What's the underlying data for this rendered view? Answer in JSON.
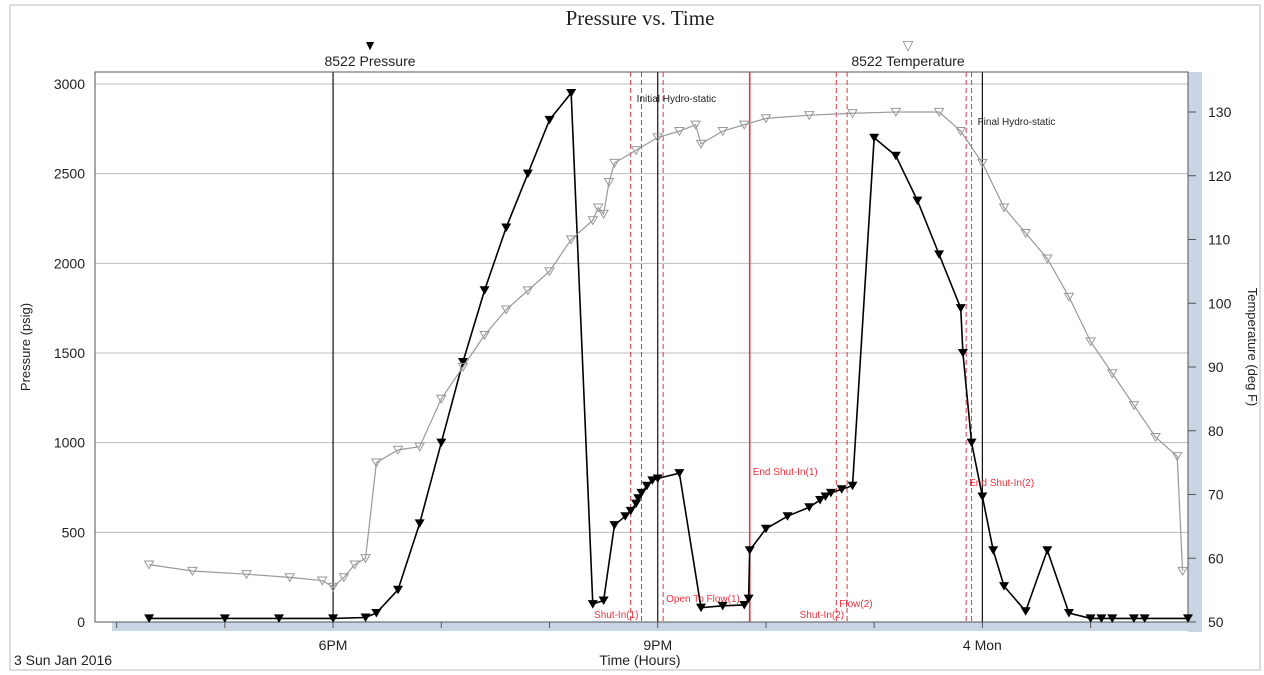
{
  "chart_data": {
    "type": "line",
    "title": "Pressure vs. Time",
    "xlabel": "Time (Hours)",
    "ylabel_left": "Pressure (psig)",
    "ylabel_right": "Temperature (deg F)",
    "date_label": "3 Sun Jan 2016",
    "x_ticks": [
      {
        "label": "6PM",
        "hour": 18
      },
      {
        "label": "9PM",
        "hour": 21
      },
      {
        "label": "4 Mon",
        "hour": 24
      }
    ],
    "x_range_hours": [
      15.8,
      25.9
    ],
    "ylim_left": [
      0,
      3000
    ],
    "y_ticks_left": [
      0,
      500,
      1000,
      1500,
      2000,
      2500,
      3000
    ],
    "ylim_right": [
      50,
      130
    ],
    "y_ticks_right": [
      50,
      60,
      70,
      80,
      90,
      100,
      110,
      120,
      130
    ],
    "grid": true,
    "legend": [
      {
        "name": "8522 Pressure",
        "symbol": "▼",
        "color": "#000000"
      },
      {
        "name": "8522 Temperature",
        "symbol": "▽",
        "color": "#999999"
      }
    ],
    "series": [
      {
        "name": "8522 Pressure",
        "axis": "left",
        "color": "#000000",
        "x": [
          16.3,
          17.0,
          17.5,
          18.0,
          18.3,
          18.4,
          18.6,
          18.8,
          19.0,
          19.2,
          19.4,
          19.6,
          19.8,
          20.0,
          20.2,
          20.4,
          20.5,
          20.6,
          20.7,
          20.75,
          20.8,
          20.82,
          20.85,
          20.9,
          20.95,
          21.0,
          21.2,
          21.4,
          21.6,
          21.8,
          21.84,
          21.85,
          22.0,
          22.2,
          22.4,
          22.5,
          22.55,
          22.6,
          22.7,
          22.8,
          23.0,
          23.2,
          23.4,
          23.6,
          23.8,
          23.82,
          23.9,
          24.0,
          24.1,
          24.2,
          24.4,
          24.6,
          24.8,
          25.0,
          25.1,
          25.2,
          25.4,
          25.5,
          25.9
        ],
        "values": [
          20,
          20,
          20,
          20,
          25,
          50,
          180,
          550,
          1000,
          1450,
          1850,
          2200,
          2500,
          2800,
          2950,
          100,
          120,
          540,
          590,
          620,
          660,
          690,
          720,
          760,
          790,
          800,
          830,
          80,
          90,
          95,
          130,
          400,
          520,
          590,
          640,
          680,
          700,
          720,
          740,
          760,
          2700,
          2600,
          2350,
          2050,
          1750,
          1500,
          1000,
          700,
          400,
          200,
          60,
          400,
          50,
          20,
          20,
          20,
          20,
          20,
          20
        ]
      },
      {
        "name": "8522 Temperature",
        "axis": "right",
        "color": "#999999",
        "x": [
          16.3,
          16.7,
          17.2,
          17.6,
          17.9,
          18.0,
          18.1,
          18.2,
          18.3,
          18.4,
          18.6,
          18.8,
          19.0,
          19.2,
          19.4,
          19.6,
          19.8,
          20.0,
          20.2,
          20.4,
          20.45,
          20.5,
          20.55,
          20.6,
          20.8,
          21.0,
          21.2,
          21.35,
          21.4,
          21.6,
          21.8,
          22.0,
          22.4,
          22.8,
          23.2,
          23.6,
          23.8,
          24.0,
          24.2,
          24.4,
          24.6,
          24.8,
          25.0,
          25.2,
          25.4,
          25.6,
          25.8,
          25.85
        ],
        "values": [
          59,
          58,
          57.5,
          57,
          56.5,
          55.5,
          57,
          59,
          60,
          75,
          77,
          77.5,
          85,
          90,
          95,
          99,
          102,
          105,
          110,
          113,
          115,
          114,
          119,
          122,
          124,
          126,
          127,
          128,
          125,
          127,
          128,
          129,
          129.5,
          129.8,
          130,
          130,
          127,
          122,
          115,
          111,
          107,
          101,
          94,
          89,
          84,
          79,
          76,
          58
        ]
      }
    ],
    "markers": [
      {
        "label": "Initial Hydro-static",
        "hour": 20.75
      },
      {
        "label": "Shut-In(1)",
        "hour": 20.85
      },
      {
        "label": "Open To Flow(1)",
        "hour": 21.05
      },
      {
        "label": "End Shut-In(1)",
        "hour": 21.85
      },
      {
        "label": "Flow(2)",
        "hour": 22.65
      },
      {
        "label": "Shut-In(2)",
        "hour": 22.75
      },
      {
        "label": "End Shut-In(2)",
        "hour": 23.85
      },
      {
        "label": "Final Hydro-static",
        "hour": 23.9
      }
    ],
    "marker_color": "#e8343e"
  }
}
